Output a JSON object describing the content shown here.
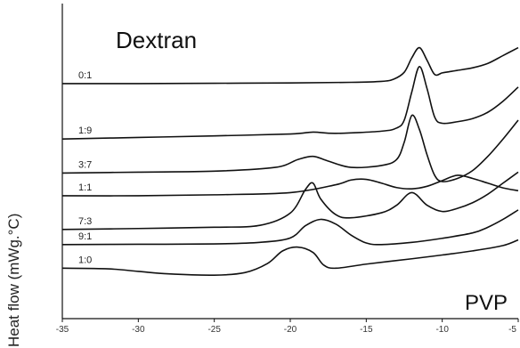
{
  "chart_data": {
    "type": "line",
    "title": "",
    "xlabel": "",
    "ylabel": "Heat flow (mWg.°C)",
    "xlim": [
      -35,
      -5
    ],
    "xticks": [
      -35,
      -30,
      -25,
      -20,
      -15,
      -10,
      -5
    ],
    "grid": false,
    "annotations": {
      "top": "Dextran",
      "bottom": "PVP"
    },
    "series": [
      {
        "name": "0:1",
        "x": [
          -35,
          -30,
          -25,
          -20,
          -16,
          -14,
          -13.2,
          -12.5,
          -12,
          -11.5,
          -11,
          -10.5,
          -10,
          -9.5,
          -9,
          -8,
          -7,
          -6,
          -5
        ],
        "y": [
          74.6,
          74.6,
          74.7,
          74.8,
          75.0,
          75.3,
          76.0,
          78.2,
          82.8,
          86.0,
          82.0,
          77.5,
          78.0,
          78.4,
          78.8,
          79.6,
          81.0,
          83.5,
          86.0
        ]
      },
      {
        "name": "1:9",
        "x": [
          -35,
          -30,
          -25,
          -20,
          -18.5,
          -17,
          -14,
          -13,
          -12.5,
          -12,
          -11.5,
          -11,
          -10.5,
          -10,
          -9,
          -8,
          -7,
          -6,
          -5
        ],
        "y": [
          57.0,
          57.5,
          58.0,
          58.6,
          59.2,
          58.8,
          59.5,
          60.5,
          63.0,
          72.0,
          80.0,
          73.0,
          64.0,
          62.0,
          62.5,
          63.5,
          65.5,
          69.0,
          73.5
        ]
      },
      {
        "name": "3:7",
        "x": [
          -35,
          -30,
          -25,
          -21,
          -19.5,
          -18.5,
          -17.5,
          -16,
          -14,
          -13,
          -12.5,
          -12,
          -11.5,
          -11,
          -10.5,
          -10,
          -9,
          -8,
          -7,
          -6,
          -5
        ],
        "y": [
          46.2,
          46.5,
          46.8,
          48.0,
          50.5,
          51.5,
          50.0,
          48.0,
          48.6,
          50.5,
          56.0,
          64.5,
          60.0,
          52.0,
          45.5,
          43.5,
          44.5,
          47.0,
          51.5,
          57.0,
          63.0
        ]
      },
      {
        "name": "1:1",
        "x": [
          -35,
          -30,
          -25,
          -20,
          -17,
          -16,
          -15,
          -14,
          -13,
          -12,
          -11,
          -10,
          -9,
          -8,
          -7,
          -6,
          -5
        ],
        "y": [
          39.0,
          39.0,
          39.3,
          40.0,
          42.5,
          44.0,
          44.2,
          43.0,
          41.6,
          41.2,
          42.0,
          43.8,
          45.5,
          44.5,
          43.0,
          41.5,
          40.6
        ]
      },
      {
        "name": "7:3",
        "x": [
          -35,
          -30,
          -25,
          -22,
          -20,
          -19,
          -18.5,
          -18,
          -17,
          -16,
          -14,
          -13,
          -12,
          -11,
          -10,
          -9,
          -8,
          -7,
          -6,
          -5
        ],
        "y": [
          28.3,
          28.6,
          29.0,
          29.6,
          33.5,
          41.0,
          43.0,
          38.0,
          33.0,
          32.0,
          33.6,
          36.0,
          40.0,
          36.0,
          34.0,
          35.0,
          36.8,
          39.5,
          43.0,
          46.5
        ]
      },
      {
        "name": "9:1",
        "x": [
          -35,
          -30,
          -25,
          -22,
          -20,
          -19,
          -18,
          -17,
          -16,
          -15,
          -14,
          -12,
          -10,
          -8,
          -7,
          -6,
          -5
        ],
        "y": [
          23.5,
          23.6,
          23.7,
          24.2,
          25.6,
          29.5,
          31.5,
          30.0,
          26.5,
          24.0,
          23.5,
          24.2,
          25.5,
          27.2,
          29.0,
          31.5,
          34.5
        ]
      },
      {
        "name": "1:0",
        "x": [
          -35,
          -32,
          -30,
          -28,
          -25,
          -23,
          -21.5,
          -20.5,
          -19.5,
          -18.5,
          -17.8,
          -17,
          -15,
          -12,
          -10,
          -8,
          -6,
          -5
        ],
        "y": [
          16.0,
          15.8,
          15.0,
          14.2,
          13.8,
          14.6,
          17.5,
          21.5,
          22.7,
          21.0,
          17.0,
          16.0,
          17.3,
          19.0,
          20.2,
          21.5,
          23.2,
          25.0
        ]
      }
    ]
  }
}
